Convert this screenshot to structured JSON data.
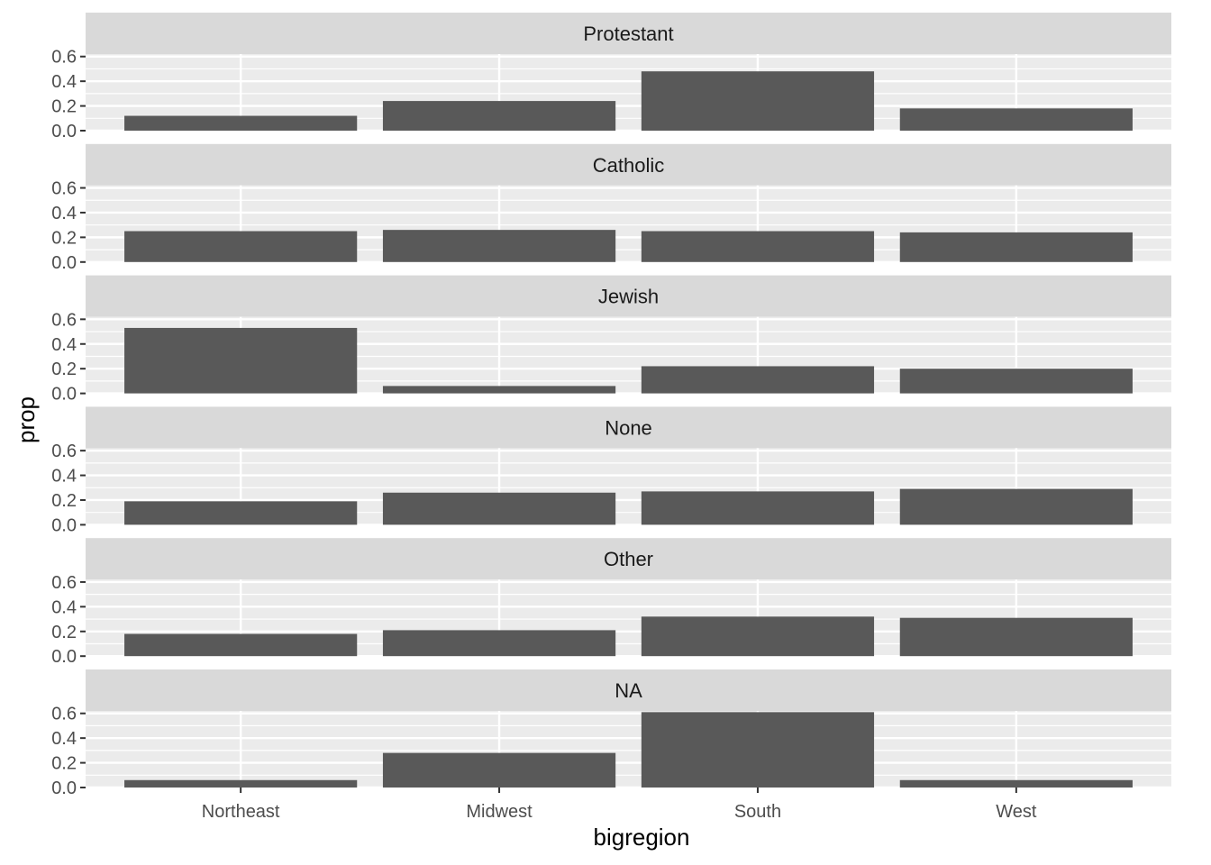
{
  "chart_data": {
    "type": "bar",
    "facet_layout": "rows",
    "xlabel": "bigregion",
    "ylabel": "prop",
    "categories": [
      "Northeast",
      "Midwest",
      "South",
      "West"
    ],
    "ylim": [
      0,
      0.62
    ],
    "yticks": [
      0.0,
      0.2,
      0.4,
      0.6
    ],
    "ytick_labels": [
      "0.0",
      "0.2",
      "0.4",
      "0.6"
    ],
    "grid": true,
    "legend": "none",
    "colors": {
      "bar": "#595959",
      "panel_bg": "#ebebeb",
      "strip_bg": "#d9d9d9",
      "grid": "#ffffff"
    },
    "facets": [
      {
        "label": "Protestant",
        "values": [
          0.12,
          0.24,
          0.48,
          0.18
        ]
      },
      {
        "label": "Catholic",
        "values": [
          0.25,
          0.26,
          0.25,
          0.24
        ]
      },
      {
        "label": "Jewish",
        "values": [
          0.53,
          0.06,
          0.22,
          0.2
        ]
      },
      {
        "label": "None",
        "values": [
          0.19,
          0.26,
          0.27,
          0.29
        ]
      },
      {
        "label": "Other",
        "values": [
          0.18,
          0.21,
          0.32,
          0.31
        ]
      },
      {
        "label": "NA",
        "values": [
          0.06,
          0.28,
          0.61,
          0.06
        ]
      }
    ]
  }
}
